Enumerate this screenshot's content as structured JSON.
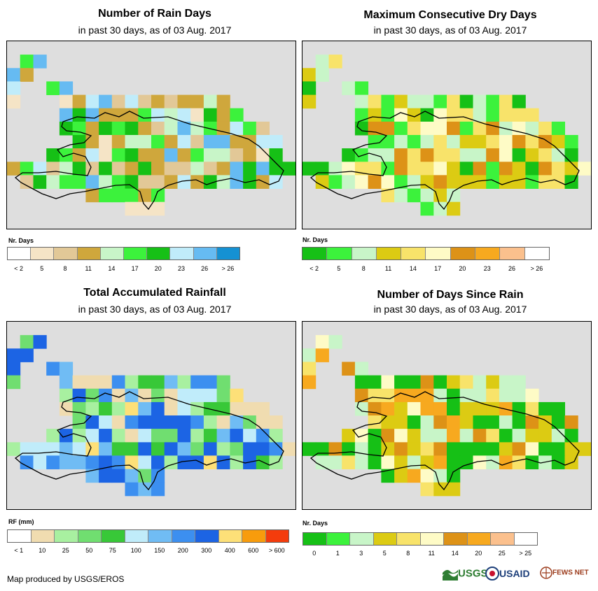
{
  "panels": [
    {
      "title": "Number of Rain Days",
      "subtitle": "in past 30 days, as of 03 Aug. 2017",
      "legend_label": "Nr. Days",
      "legend_colors": [
        "#ffffff",
        "#f5e4c6",
        "#e2c897",
        "#cfa73c",
        "#c8f5c8",
        "#3cf23c",
        "#16c016",
        "#c0ecfa",
        "#66bbf2",
        "#1591d3"
      ],
      "legend_ticks": [
        "< 2",
        "5",
        "8",
        "11",
        "14",
        "17",
        "20",
        "23",
        "26",
        "> 26"
      ],
      "tick_mode": "edge"
    },
    {
      "title": "Maximum Consecutive Dry Days",
      "subtitle": "in past 30 days, as of 03 Aug. 2017",
      "legend_label": "Nr. Days",
      "legend_colors": [
        "#16c016",
        "#3cf23c",
        "#c8f5c8",
        "#dccb13",
        "#f8e36a",
        "#fefbc6",
        "#dd9217",
        "#f7a91f",
        "#fbc08d",
        "#ffffff"
      ],
      "legend_ticks": [
        "< 2",
        "5",
        "8",
        "11",
        "14",
        "17",
        "20",
        "23",
        "26",
        "> 26"
      ],
      "tick_mode": "edge"
    },
    {
      "title": "Total Accumulated Rainfall",
      "subtitle": "in past 30 days, as of 03 Aug. 2017",
      "legend_label": "RF (mm)",
      "legend_colors": [
        "#ffffff",
        "#f0dcb0",
        "#a8f0a0",
        "#70de70",
        "#38c838",
        "#c0ecfa",
        "#70bcf4",
        "#3c8ff0",
        "#1c64e4",
        "#fde078",
        "#f89c0c",
        "#f43c0c"
      ],
      "legend_ticks": [
        "< 1",
        "10",
        "25",
        "50",
        "75",
        "100",
        "150",
        "200",
        "300",
        "400",
        "600",
        "> 600"
      ],
      "tick_mode": "edge"
    },
    {
      "title": "Number of Days Since Rain",
      "subtitle": "in past 30 days, as of 03 Aug. 2017",
      "legend_label": "Nr. Days",
      "legend_colors": [
        "#16c016",
        "#3cf23c",
        "#c8f5c8",
        "#dccb13",
        "#f8e36a",
        "#fefbc6",
        "#dd9217",
        "#f7a91f",
        "#fbc08d",
        "#ffffff"
      ],
      "legend_ticks": [
        "0",
        "1",
        "3",
        "5",
        "8",
        "11",
        "14",
        "20",
        "25",
        "> 25"
      ],
      "tick_mode": "center"
    }
  ],
  "footer": {
    "credit": "Map produced by USGS/EROS",
    "logos": [
      "USGS",
      "USAID",
      "FEWS NET"
    ]
  }
}
